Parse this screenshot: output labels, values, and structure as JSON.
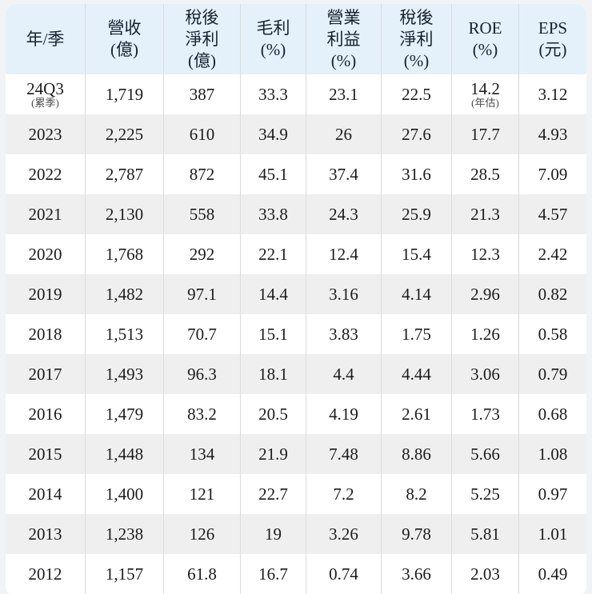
{
  "colors": {
    "header_bg": "#e4f1fb",
    "row_bg": "#ffffff",
    "row_alt_bg": "#efefef",
    "divider": "#dcdcdc",
    "page_bg": "#f2f3f4"
  },
  "chart_data": {
    "type": "table",
    "columns": [
      {
        "id": "year-quarter",
        "lines": [
          "年/季"
        ]
      },
      {
        "id": "revenue",
        "lines": [
          "營收",
          "(億)"
        ]
      },
      {
        "id": "net-income",
        "lines": [
          "稅後",
          "淨利",
          "(億)"
        ]
      },
      {
        "id": "gross-margin",
        "lines": [
          "毛利",
          "(%)"
        ]
      },
      {
        "id": "operating-margin",
        "lines": [
          "營業",
          "利益",
          "(%)"
        ]
      },
      {
        "id": "net-margin",
        "lines": [
          "稅後",
          "淨利",
          "(%)"
        ]
      },
      {
        "id": "roe",
        "lines": [
          "ROE",
          "(%)"
        ]
      },
      {
        "id": "eps",
        "lines": [
          "EPS",
          "(元)"
        ]
      }
    ],
    "rows": [
      [
        {
          "text": "24Q3",
          "sub": "(累季)"
        },
        {
          "text": "1,719"
        },
        {
          "text": "387"
        },
        {
          "text": "33.3"
        },
        {
          "text": "23.1"
        },
        {
          "text": "22.5"
        },
        {
          "text": "14.2",
          "sub": "(年估)"
        },
        {
          "text": "3.12"
        }
      ],
      [
        {
          "text": "2023"
        },
        {
          "text": "2,225"
        },
        {
          "text": "610"
        },
        {
          "text": "34.9"
        },
        {
          "text": "26"
        },
        {
          "text": "27.6"
        },
        {
          "text": "17.7"
        },
        {
          "text": "4.93"
        }
      ],
      [
        {
          "text": "2022"
        },
        {
          "text": "2,787"
        },
        {
          "text": "872"
        },
        {
          "text": "45.1"
        },
        {
          "text": "37.4"
        },
        {
          "text": "31.6"
        },
        {
          "text": "28.5"
        },
        {
          "text": "7.09"
        }
      ],
      [
        {
          "text": "2021"
        },
        {
          "text": "2,130"
        },
        {
          "text": "558"
        },
        {
          "text": "33.8"
        },
        {
          "text": "24.3"
        },
        {
          "text": "25.9"
        },
        {
          "text": "21.3"
        },
        {
          "text": "4.57"
        }
      ],
      [
        {
          "text": "2020"
        },
        {
          "text": "1,768"
        },
        {
          "text": "292"
        },
        {
          "text": "22.1"
        },
        {
          "text": "12.4"
        },
        {
          "text": "15.4"
        },
        {
          "text": "12.3"
        },
        {
          "text": "2.42"
        }
      ],
      [
        {
          "text": "2019"
        },
        {
          "text": "1,482"
        },
        {
          "text": "97.1"
        },
        {
          "text": "14.4"
        },
        {
          "text": "3.16"
        },
        {
          "text": "4.14"
        },
        {
          "text": "2.96"
        },
        {
          "text": "0.82"
        }
      ],
      [
        {
          "text": "2018"
        },
        {
          "text": "1,513"
        },
        {
          "text": "70.7"
        },
        {
          "text": "15.1"
        },
        {
          "text": "3.83"
        },
        {
          "text": "1.75"
        },
        {
          "text": "1.26"
        },
        {
          "text": "0.58"
        }
      ],
      [
        {
          "text": "2017"
        },
        {
          "text": "1,493"
        },
        {
          "text": "96.3"
        },
        {
          "text": "18.1"
        },
        {
          "text": "4.4"
        },
        {
          "text": "4.44"
        },
        {
          "text": "3.06"
        },
        {
          "text": "0.79"
        }
      ],
      [
        {
          "text": "2016"
        },
        {
          "text": "1,479"
        },
        {
          "text": "83.2"
        },
        {
          "text": "20.5"
        },
        {
          "text": "4.19"
        },
        {
          "text": "2.61"
        },
        {
          "text": "1.73"
        },
        {
          "text": "0.68"
        }
      ],
      [
        {
          "text": "2015"
        },
        {
          "text": "1,448"
        },
        {
          "text": "134"
        },
        {
          "text": "21.9"
        },
        {
          "text": "7.48"
        },
        {
          "text": "8.86"
        },
        {
          "text": "5.66"
        },
        {
          "text": "1.08"
        }
      ],
      [
        {
          "text": "2014"
        },
        {
          "text": "1,400"
        },
        {
          "text": "121"
        },
        {
          "text": "22.7"
        },
        {
          "text": "7.2"
        },
        {
          "text": "8.2"
        },
        {
          "text": "5.25"
        },
        {
          "text": "0.97"
        }
      ],
      [
        {
          "text": "2013"
        },
        {
          "text": "1,238"
        },
        {
          "text": "126"
        },
        {
          "text": "19"
        },
        {
          "text": "3.26"
        },
        {
          "text": "9.78"
        },
        {
          "text": "5.81"
        },
        {
          "text": "1.01"
        }
      ],
      [
        {
          "text": "2012"
        },
        {
          "text": "1,157"
        },
        {
          "text": "61.8"
        },
        {
          "text": "16.7"
        },
        {
          "text": "0.74"
        },
        {
          "text": "3.66"
        },
        {
          "text": "2.03"
        },
        {
          "text": "0.49"
        }
      ]
    ]
  }
}
